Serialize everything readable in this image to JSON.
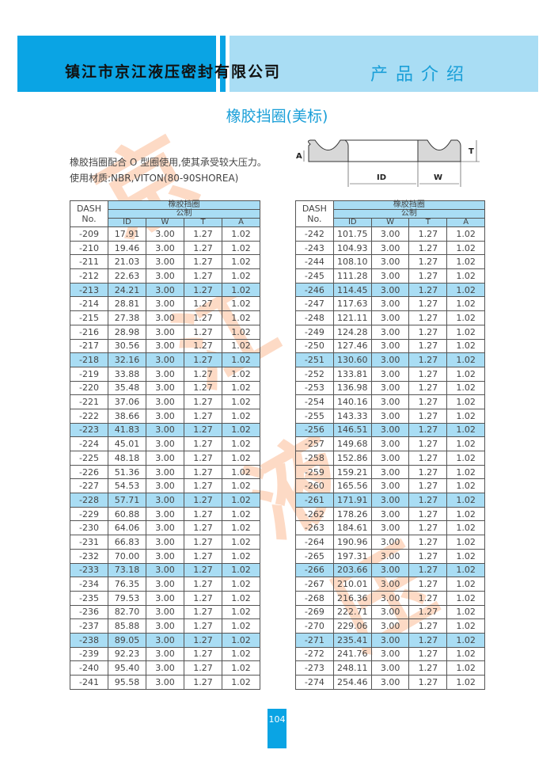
{
  "header": {
    "company": "镇江市京江液压密封有限公司",
    "section": "产品介绍"
  },
  "title": "橡胶挡圈(美标)",
  "intro": {
    "line1": "橡胶挡圈配合 O 型圈使用,使其承受较大压力。",
    "line2": "使用材质:NBR,VITON(80-90SHOREA)"
  },
  "diagram": {
    "labels": {
      "A": "A",
      "T": "T",
      "ID": "ID",
      "W": "W"
    }
  },
  "watermark": "京江液压",
  "colors": {
    "accent": "#0aa4e4",
    "light": "#a9ddf4",
    "title": "#1a9fd8"
  },
  "table_header": {
    "dash": "DASH",
    "no": "No.",
    "group": "橡胶挡圈",
    "unit": "公制",
    "cols": [
      "ID",
      "W",
      "T",
      "A"
    ]
  },
  "left_rows": [
    [
      "-209",
      "17.91",
      "3.00",
      "1.27",
      "1.02"
    ],
    [
      "-210",
      "19.46",
      "3.00",
      "1.27",
      "1.02"
    ],
    [
      "-211",
      "21.03",
      "3.00",
      "1.27",
      "1.02"
    ],
    [
      "-212",
      "22.63",
      "3.00",
      "1.27",
      "1.02"
    ],
    [
      "-213",
      "24.21",
      "3.00",
      "1.27",
      "1.02"
    ],
    [
      "-214",
      "28.81",
      "3.00",
      "1.27",
      "1.02"
    ],
    [
      "-215",
      "27.38",
      "3.00",
      "1.27",
      "1.02"
    ],
    [
      "-216",
      "28.98",
      "3.00",
      "1.27",
      "1.02"
    ],
    [
      "-217",
      "30.56",
      "3.00",
      "1.27",
      "1.02"
    ],
    [
      "-218",
      "32.16",
      "3.00",
      "1.27",
      "1.02"
    ],
    [
      "-219",
      "33.88",
      "3.00",
      "1.27",
      "1.02"
    ],
    [
      "-220",
      "35.48",
      "3.00",
      "1.27",
      "1.02"
    ],
    [
      "-221",
      "37.06",
      "3.00",
      "1.27",
      "1.02"
    ],
    [
      "-222",
      "38.66",
      "3.00",
      "1.27",
      "1.02"
    ],
    [
      "-223",
      "41.83",
      "3.00",
      "1.27",
      "1.02"
    ],
    [
      "-224",
      "45.01",
      "3.00",
      "1.27",
      "1.02"
    ],
    [
      "-225",
      "48.18",
      "3.00",
      "1.27",
      "1.02"
    ],
    [
      "-226",
      "51.36",
      "3.00",
      "1.27",
      "1.02"
    ],
    [
      "-227",
      "54.53",
      "3.00",
      "1.27",
      "1.02"
    ],
    [
      "-228",
      "57.71",
      "3.00",
      "1.27",
      "1.02"
    ],
    [
      "-229",
      "60.88",
      "3.00",
      "1.27",
      "1.02"
    ],
    [
      "-230",
      "64.06",
      "3.00",
      "1.27",
      "1.02"
    ],
    [
      "-231",
      "66.83",
      "3.00",
      "1.27",
      "1.02"
    ],
    [
      "-232",
      "70.00",
      "3.00",
      "1.27",
      "1.02"
    ],
    [
      "-233",
      "73.18",
      "3.00",
      "1.27",
      "1.02"
    ],
    [
      "-234",
      "76.35",
      "3.00",
      "1.27",
      "1.02"
    ],
    [
      "-235",
      "79.53",
      "3.00",
      "1.27",
      "1.02"
    ],
    [
      "-236",
      "82.70",
      "3.00",
      "1.27",
      "1.02"
    ],
    [
      "-237",
      "85.88",
      "3.00",
      "1.27",
      "1.02"
    ],
    [
      "-238",
      "89.05",
      "3.00",
      "1.27",
      "1.02"
    ],
    [
      "-239",
      "92.23",
      "3.00",
      "1.27",
      "1.02"
    ],
    [
      "-240",
      "95.40",
      "3.00",
      "1.27",
      "1.02"
    ],
    [
      "-241",
      "95.58",
      "3.00",
      "1.27",
      "1.02"
    ]
  ],
  "right_rows": [
    [
      "-242",
      "101.75",
      "3.00",
      "1.27",
      "1.02"
    ],
    [
      "-243",
      "104.93",
      "3.00",
      "1.27",
      "1.02"
    ],
    [
      "-244",
      "108.10",
      "3.00",
      "1.27",
      "1.02"
    ],
    [
      "-245",
      "111.28",
      "3.00",
      "1.27",
      "1.02"
    ],
    [
      "-246",
      "114.45",
      "3.00",
      "1.27",
      "1.02"
    ],
    [
      "-247",
      "117.63",
      "3.00",
      "1.27",
      "1.02"
    ],
    [
      "-248",
      "121.11",
      "3.00",
      "1.27",
      "1.02"
    ],
    [
      "-249",
      "124.28",
      "3.00",
      "1.27",
      "1.02"
    ],
    [
      "-250",
      "127.46",
      "3.00",
      "1.27",
      "1.02"
    ],
    [
      "-251",
      "130.60",
      "3.00",
      "1.27",
      "1.02"
    ],
    [
      "-252",
      "133.81",
      "3.00",
      "1.27",
      "1.02"
    ],
    [
      "-253",
      "136.98",
      "3.00",
      "1.27",
      "1.02"
    ],
    [
      "-254",
      "140.16",
      "3.00",
      "1.27",
      "1.02"
    ],
    [
      "-255",
      "143.33",
      "3.00",
      "1.27",
      "1.02"
    ],
    [
      "-256",
      "146.51",
      "3.00",
      "1.27",
      "1.02"
    ],
    [
      "-257",
      "149.68",
      "3.00",
      "1.27",
      "1.02"
    ],
    [
      "-258",
      "152.86",
      "3.00",
      "1.27",
      "1.02"
    ],
    [
      "-259",
      "159.21",
      "3.00",
      "1.27",
      "1.02"
    ],
    [
      "-260",
      "165.56",
      "3.00",
      "1.27",
      "1.02"
    ],
    [
      "-261",
      "171.91",
      "3.00",
      "1.27",
      "1.02"
    ],
    [
      "-262",
      "178.26",
      "3.00",
      "1.27",
      "1.02"
    ],
    [
      "-263",
      "184.61",
      "3.00",
      "1.27",
      "1.02"
    ],
    [
      "-264",
      "190.96",
      "3.00",
      "1.27",
      "1.02"
    ],
    [
      "-265",
      "197.31",
      "3.00",
      "1.27",
      "1.02"
    ],
    [
      "-266",
      "203.66",
      "3.00",
      "1.27",
      "1.02"
    ],
    [
      "-267",
      "210.01",
      "3.00",
      "1.27",
      "1.02"
    ],
    [
      "-268",
      "216.36",
      "3.00",
      "1.27",
      "1.02"
    ],
    [
      "-269",
      "222.71",
      "3.00",
      "1.27",
      "1.02"
    ],
    [
      "-270",
      "229.06",
      "3.00",
      "1.27",
      "1.02"
    ],
    [
      "-271",
      "235.41",
      "3.00",
      "1.27",
      "1.02"
    ],
    [
      "-272",
      "241.76",
      "3.00",
      "1.27",
      "1.02"
    ],
    [
      "-273",
      "248.11",
      "3.00",
      "1.27",
      "1.02"
    ],
    [
      "-274",
      "254.46",
      "3.00",
      "1.27",
      "1.02"
    ]
  ],
  "highlight_every": 5,
  "page_number": "104"
}
